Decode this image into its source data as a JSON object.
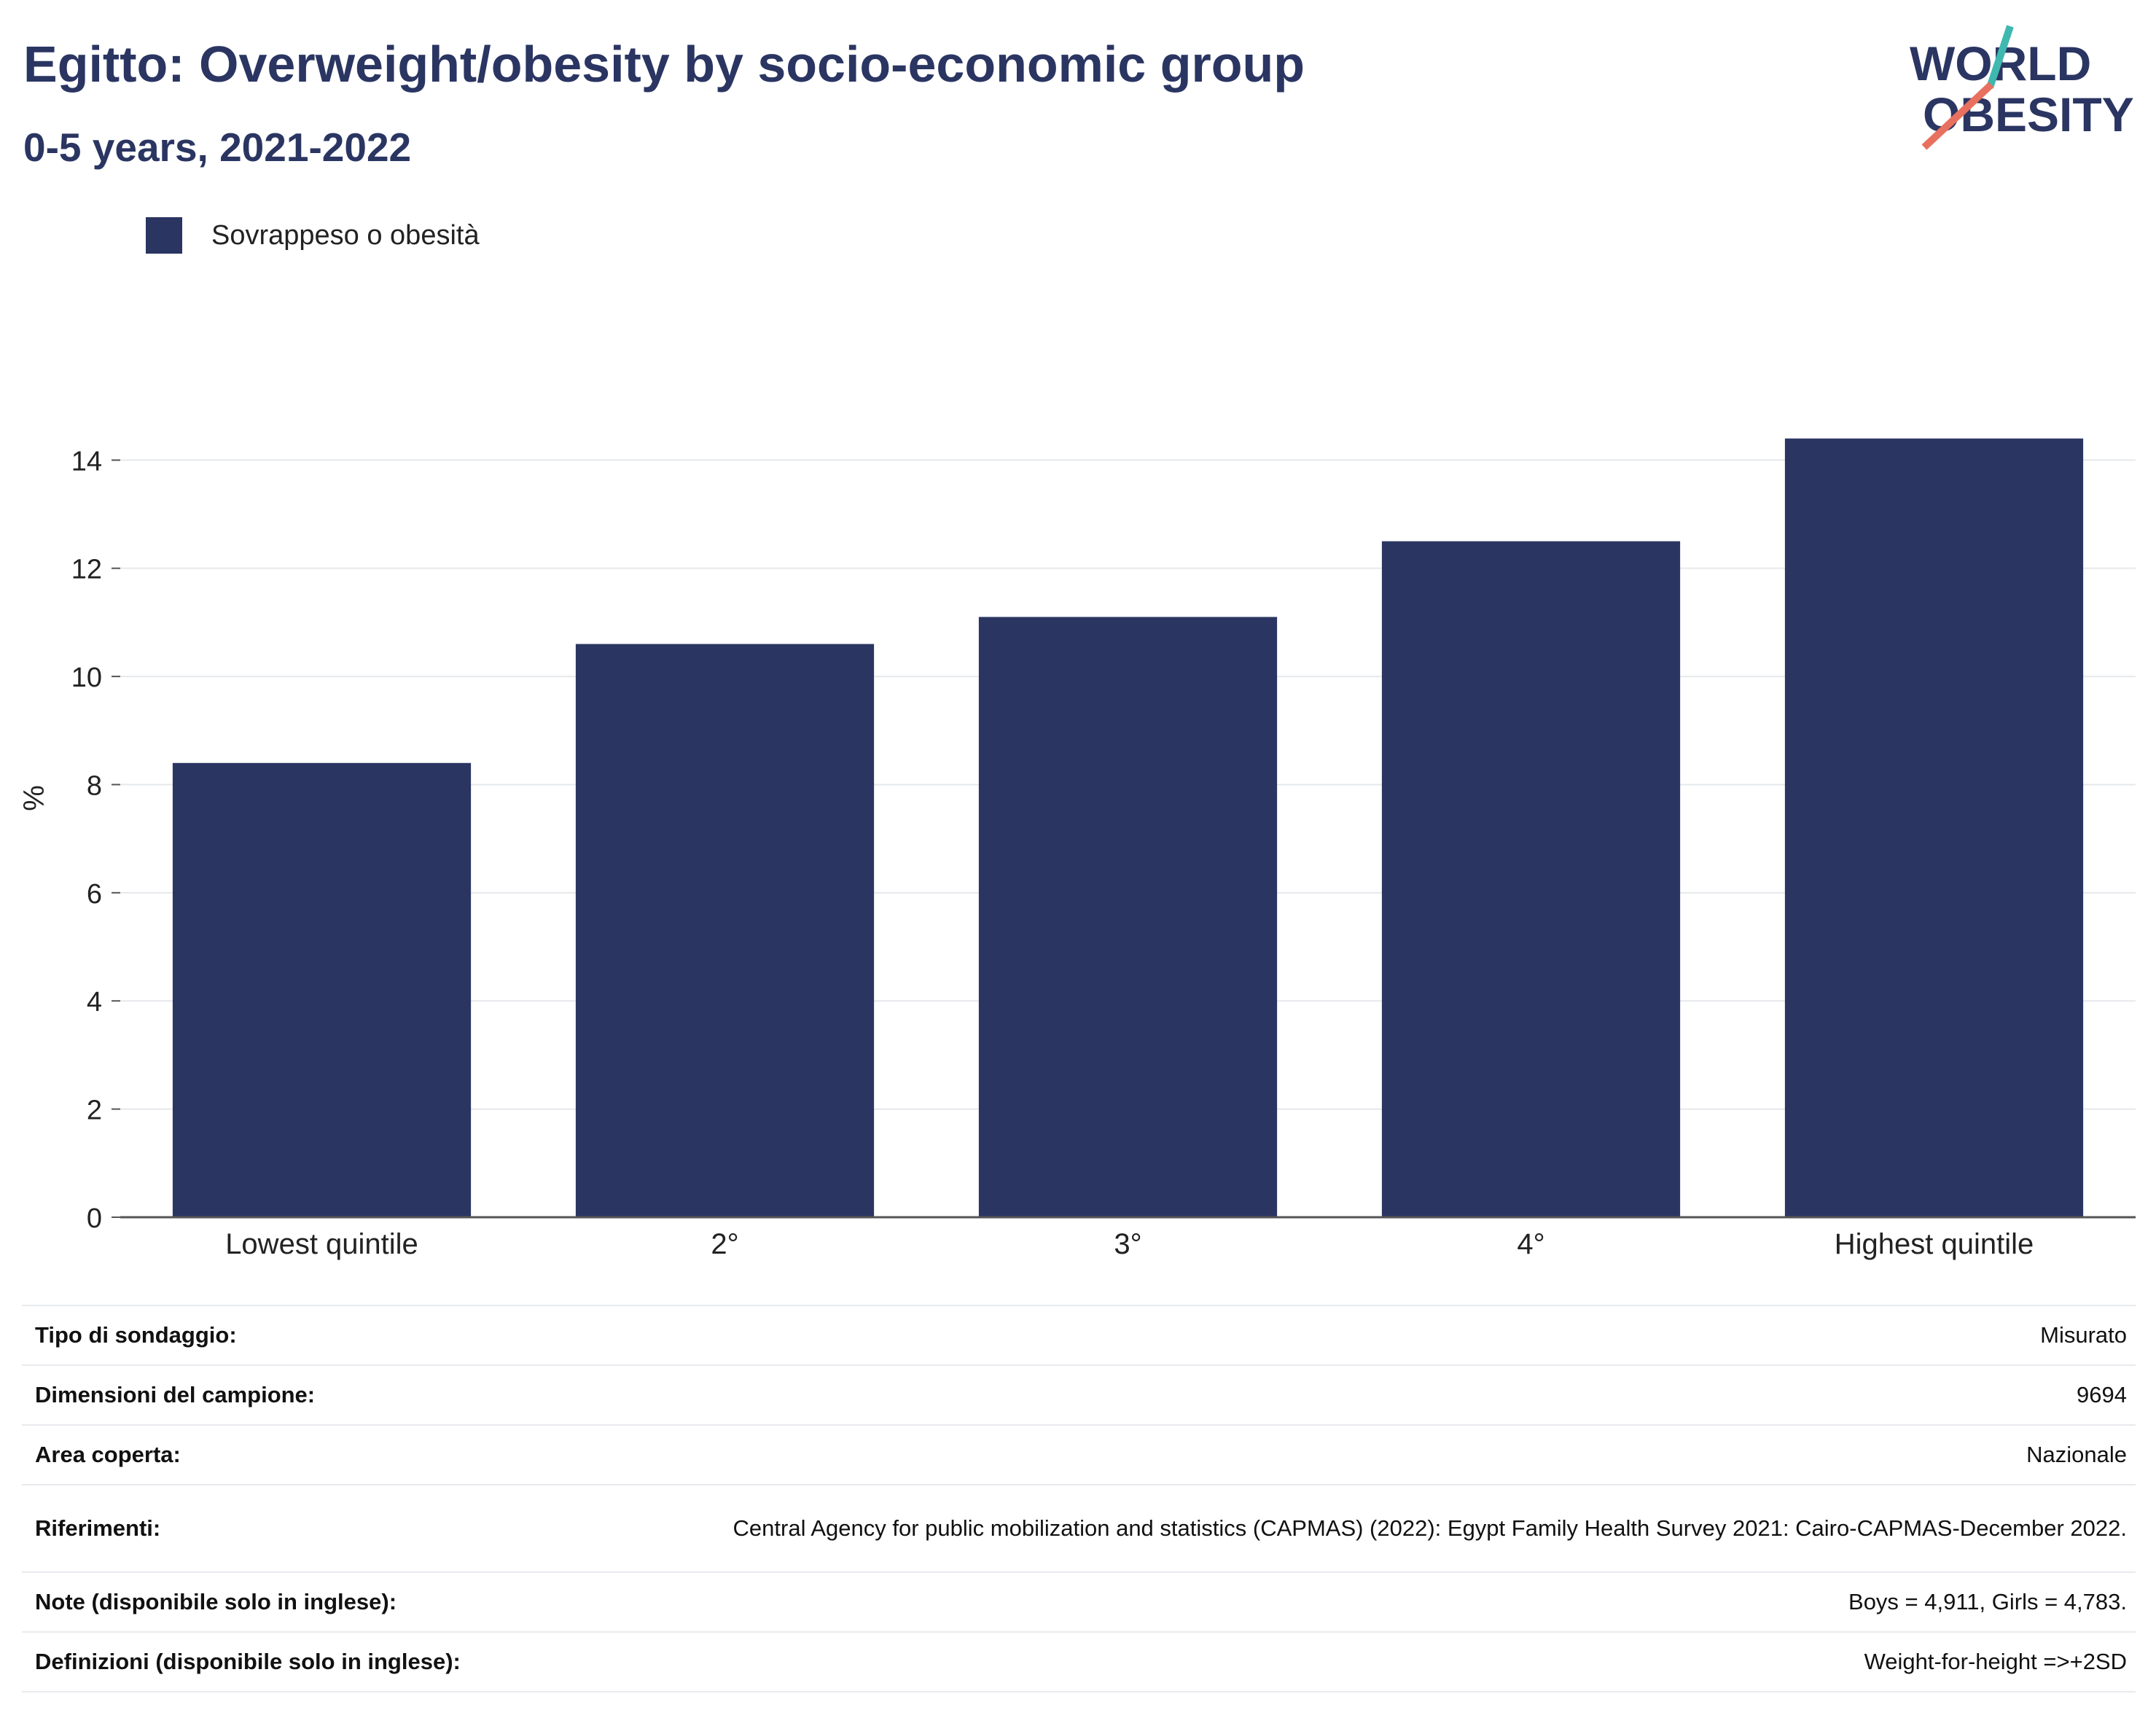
{
  "header": {
    "title": "Egitto: Overweight/obesity by socio-economic group",
    "subtitle": "0-5 years, 2021-2022"
  },
  "logo": {
    "line1": "WORLD",
    "line2": "OBESITY",
    "colors": {
      "navy": "#2a3562",
      "teal": "#3fb8b0",
      "coral": "#e8705f"
    }
  },
  "chart_data": {
    "type": "bar",
    "categories": [
      "Lowest quintile",
      "2°",
      "3°",
      "4°",
      "Highest quintile"
    ],
    "series": [
      {
        "name": "Sovrappeso o obesità",
        "values": [
          8.4,
          10.6,
          11.1,
          12.5,
          14.4
        ],
        "color": "#2a3562"
      }
    ],
    "ylabel": "%",
    "xlabel": "",
    "ylim": [
      0,
      15.5
    ],
    "yticks": [
      0,
      2,
      4,
      6,
      8,
      10,
      12,
      14
    ],
    "grid": true,
    "legend_position": "top-left"
  },
  "info_table": [
    {
      "label": "Tipo di sondaggio:",
      "value": "Misurato"
    },
    {
      "label": "Dimensioni del campione:",
      "value": "9694"
    },
    {
      "label": "Area coperta:",
      "value": "Nazionale"
    },
    {
      "label": "Riferimenti:",
      "value": "Central Agency for public mobilization and statistics (CAPMAS) (2022): Egypt Family Health Survey 2021: Cairo-CAPMAS-December 2022."
    },
    {
      "label": "Note (disponibile solo in inglese):",
      "value": "Boys = 4,911, Girls = 4,783."
    },
    {
      "label": "Definizioni (disponibile solo in inglese):",
      "value": "Weight-for-height =>+2SD"
    }
  ]
}
